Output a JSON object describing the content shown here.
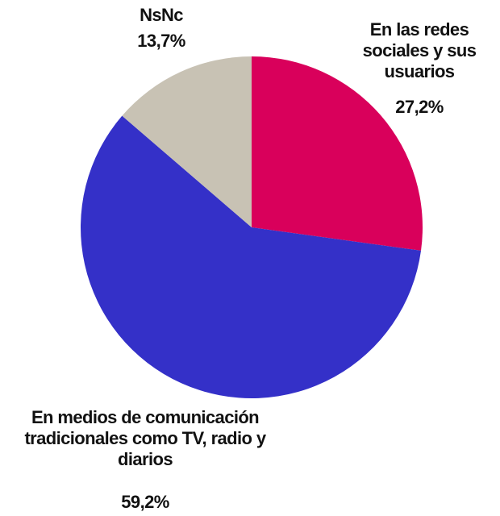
{
  "chart_data": {
    "type": "pie",
    "categories": [
      "En las redes sociales y sus usuarios",
      "En medios de comunicación tradicionales como TV, radio y diarios",
      "NsNc"
    ],
    "values": [
      27.2,
      59.2,
      13.7
    ],
    "value_labels": [
      "27,2%",
      "59,2%",
      "13,7%"
    ],
    "colors": [
      "#d9005b",
      "#3430c8",
      "#c8c2b4"
    ]
  }
}
